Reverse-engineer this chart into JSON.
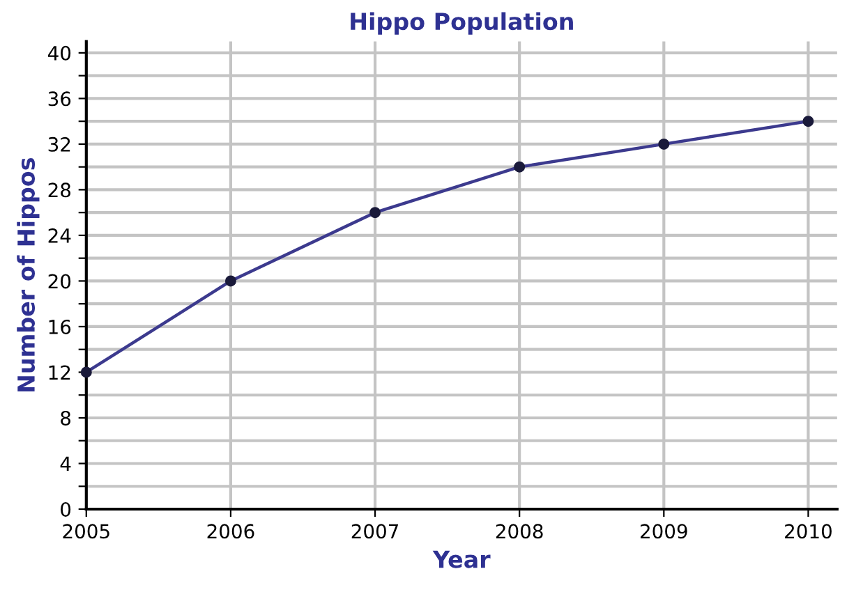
{
  "chart_data": {
    "type": "line",
    "title": "Hippo Population",
    "xlabel": "Year",
    "ylabel": "Number of Hippos",
    "x": [
      2005,
      2006,
      2007,
      2008,
      2009,
      2010
    ],
    "series": [
      {
        "color": "#3c3a8e",
        "values": [
          12,
          20,
          26,
          30,
          32,
          34
        ]
      }
    ],
    "xlim": [
      2005,
      2010.2
    ],
    "xticks": [
      2005,
      2006,
      2007,
      2008,
      2009,
      2010
    ],
    "ylim": [
      0,
      41
    ],
    "yticks": [
      0,
      {
        "value": 2,
        "label": null
      },
      4,
      {
        "value": 6,
        "label": null
      },
      8,
      {
        "value": 10,
        "label": null
      },
      12,
      {
        "value": 14,
        "label": null
      },
      16,
      {
        "value": 18,
        "label": null
      },
      20,
      {
        "value": 22,
        "label": null
      },
      24,
      {
        "value": 26,
        "label": null
      },
      28,
      {
        "value": 30,
        "label": null
      },
      32,
      {
        "value": 34,
        "label": null
      },
      36,
      {
        "value": 38,
        "label": null
      },
      40
    ],
    "grid": true,
    "marker": "circle",
    "line_style": "solid"
  }
}
